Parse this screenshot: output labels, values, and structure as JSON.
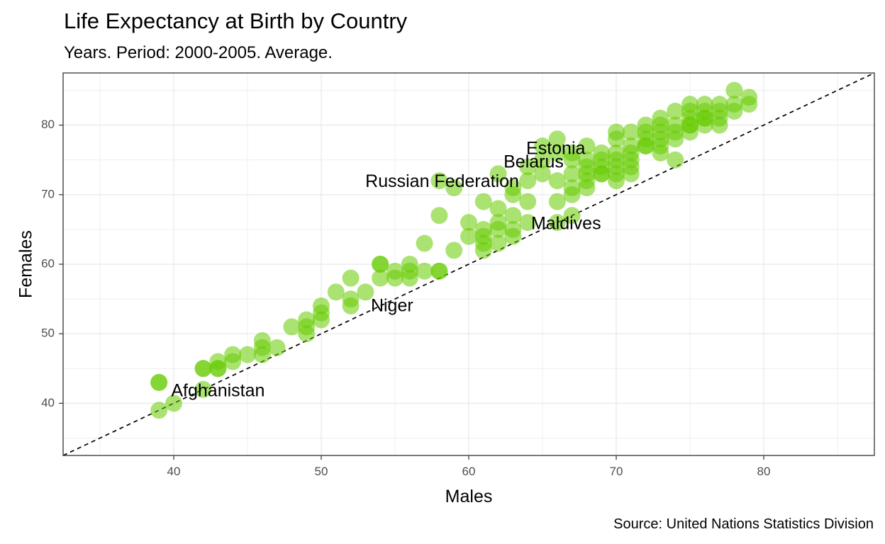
{
  "header": {
    "title": "Life Expectancy at Birth by Country",
    "subtitle": "Years. Period: 2000-2005. Average."
  },
  "footer": {
    "caption": "Source: United Nations Statistics Division"
  },
  "colors": {
    "point": "#66cc00",
    "grid": "#ebebeb",
    "panel_border": "#333333",
    "reference_line": "#000000"
  },
  "chart_data": {
    "type": "scatter",
    "title": "Life Expectancy at Birth by Country",
    "subtitle": "Years. Period: 2000-2005. Average.",
    "xlabel": "Males",
    "ylabel": "Females",
    "xlim": [
      32.5,
      87.5
    ],
    "ylim": [
      32.5,
      87.5
    ],
    "x_ticks": [
      40,
      50,
      60,
      70,
      80
    ],
    "y_ticks": [
      40,
      50,
      60,
      70,
      80
    ],
    "grid": true,
    "reference_line": "y = x (dashed)",
    "point_opacity": 0.55,
    "x": [
      39,
      39,
      39,
      40,
      42,
      42,
      42,
      43,
      43,
      43,
      44,
      44,
      45,
      46,
      46,
      46,
      47,
      48,
      49,
      49,
      49,
      50,
      50,
      50,
      51,
      52,
      52,
      52,
      53,
      54,
      54,
      54,
      55,
      55,
      56,
      56,
      56,
      57,
      57,
      58,
      58,
      58,
      58,
      59,
      59,
      60,
      60,
      61,
      61,
      61,
      61,
      61,
      62,
      62,
      62,
      62,
      62,
      63,
      63,
      63,
      63,
      63,
      64,
      64,
      64,
      64,
      65,
      65,
      65,
      66,
      66,
      66,
      66,
      66,
      67,
      67,
      67,
      67,
      67,
      67,
      68,
      68,
      68,
      68,
      68,
      68,
      69,
      69,
      69,
      69,
      69,
      70,
      70,
      70,
      70,
      70,
      70,
      70,
      71,
      71,
      71,
      71,
      71,
      71,
      72,
      72,
      72,
      72,
      72,
      73,
      73,
      73,
      73,
      73,
      73,
      74,
      74,
      74,
      74,
      74,
      75,
      75,
      75,
      75,
      75,
      75,
      76,
      76,
      76,
      76,
      76,
      77,
      77,
      77,
      77,
      78,
      78,
      78,
      79,
      79
    ],
    "y": [
      43,
      43,
      39,
      40,
      45,
      45,
      42,
      46,
      45,
      45,
      47,
      46,
      47,
      49,
      48,
      47,
      48,
      51,
      52,
      51,
      50,
      54,
      53,
      52,
      56,
      58,
      55,
      54,
      56,
      60,
      60,
      58,
      59,
      58,
      60,
      59,
      58,
      59,
      63,
      72,
      67,
      59,
      59,
      71,
      62,
      64,
      66,
      69,
      65,
      64,
      63,
      62,
      73,
      68,
      66,
      65,
      63,
      71,
      70,
      67,
      65,
      64,
      74,
      72,
      69,
      66,
      77,
      75,
      73,
      78,
      76,
      72,
      69,
      66,
      76,
      75,
      73,
      71,
      70,
      67,
      77,
      75,
      74,
      73,
      72,
      71,
      76,
      75,
      74,
      73,
      73,
      79,
      78,
      76,
      75,
      74,
      73,
      72,
      79,
      77,
      76,
      75,
      74,
      73,
      80,
      79,
      78,
      77,
      77,
      81,
      80,
      79,
      78,
      77,
      76,
      82,
      80,
      79,
      78,
      75,
      83,
      82,
      81,
      80,
      79,
      80,
      83,
      82,
      81,
      80,
      81,
      83,
      82,
      81,
      80,
      85,
      83,
      82,
      84,
      83
    ],
    "labels": [
      {
        "text": "Afghanistan",
        "x": 43,
        "y": 41.7
      },
      {
        "text": "Niger",
        "x": 54.8,
        "y": 53.9
      },
      {
        "text": "Maldives",
        "x": 66.6,
        "y": 65.7
      },
      {
        "text": "Russian Federation",
        "x": 58.2,
        "y": 71.8
      },
      {
        "text": "Belarus",
        "x": 64.4,
        "y": 74.6
      },
      {
        "text": "Estonia",
        "x": 65.9,
        "y": 76.5
      }
    ]
  }
}
